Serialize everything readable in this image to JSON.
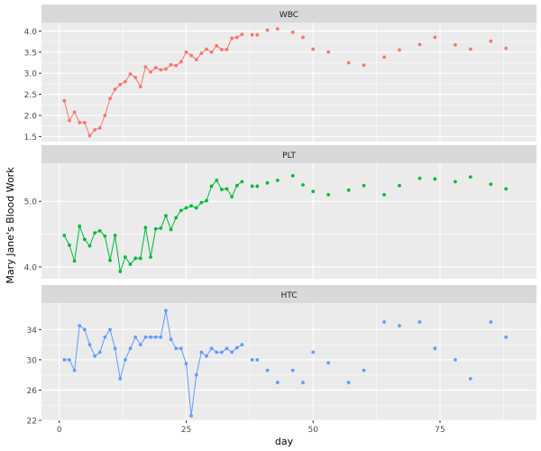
{
  "chart_data": {
    "type": "line",
    "xlabel": "day",
    "ylabel": "Mary  Jane's Blood Work",
    "xlim": [
      -3.5,
      94
    ],
    "x_ticks": [
      0,
      25,
      50,
      75
    ],
    "grid": true,
    "panels": [
      {
        "name": "WBC",
        "color": "#F8766D",
        "ylim": [
          1.38,
          4.2
        ],
        "y_ticks": [
          1.5,
          2.0,
          2.5,
          3.0,
          3.5,
          4.0
        ],
        "y_tick_labels": [
          "1.5",
          "2.0",
          "2.5",
          "3.0",
          "3.5",
          "4.0"
        ],
        "line_until": 36,
        "points": [
          [
            1,
            2.35
          ],
          [
            2,
            1.88
          ],
          [
            3,
            2.08
          ],
          [
            4,
            1.83
          ],
          [
            5,
            1.83
          ],
          [
            6,
            1.52
          ],
          [
            7,
            1.66
          ],
          [
            8,
            1.7
          ],
          [
            9,
            2.0
          ],
          [
            10,
            2.4
          ],
          [
            11,
            2.62
          ],
          [
            12,
            2.73
          ],
          [
            13,
            2.8
          ],
          [
            14,
            2.98
          ],
          [
            15,
            2.9
          ],
          [
            16,
            2.68
          ],
          [
            17,
            3.15
          ],
          [
            18,
            3.03
          ],
          [
            19,
            3.13
          ],
          [
            20,
            3.08
          ],
          [
            21,
            3.1
          ],
          [
            22,
            3.2
          ],
          [
            23,
            3.18
          ],
          [
            24,
            3.27
          ],
          [
            25,
            3.5
          ],
          [
            26,
            3.42
          ],
          [
            27,
            3.32
          ],
          [
            28,
            3.47
          ],
          [
            29,
            3.57
          ],
          [
            30,
            3.5
          ],
          [
            31,
            3.65
          ],
          [
            32,
            3.56
          ],
          [
            33,
            3.56
          ],
          [
            34,
            3.83
          ],
          [
            35,
            3.85
          ],
          [
            36,
            3.92
          ],
          [
            38,
            3.91
          ],
          [
            39,
            3.91
          ],
          [
            41,
            4.02
          ],
          [
            43,
            4.05
          ],
          [
            46,
            3.97
          ],
          [
            48,
            3.85
          ],
          [
            50,
            3.57
          ],
          [
            53,
            3.5
          ],
          [
            57,
            3.25
          ],
          [
            60,
            3.19
          ],
          [
            64,
            3.38
          ],
          [
            67,
            3.55
          ],
          [
            71,
            3.68
          ],
          [
            74,
            3.85
          ],
          [
            78,
            3.67
          ],
          [
            81,
            3.57
          ],
          [
            85,
            3.76
          ],
          [
            88,
            3.59
          ]
        ]
      },
      {
        "name": "PLT",
        "color": "#00BA38",
        "ylim": [
          3.82,
          5.58
        ],
        "y_ticks": [
          4.0,
          5.0
        ],
        "y_tick_labels": [
          "4.0",
          "5.0"
        ],
        "line_until": 36,
        "points": [
          [
            1,
            4.48
          ],
          [
            2,
            4.33
          ],
          [
            3,
            4.09
          ],
          [
            4,
            4.62
          ],
          [
            5,
            4.42
          ],
          [
            6,
            4.32
          ],
          [
            7,
            4.52
          ],
          [
            8,
            4.55
          ],
          [
            9,
            4.47
          ],
          [
            10,
            4.1
          ],
          [
            11,
            4.48
          ],
          [
            12,
            3.93
          ],
          [
            13,
            4.15
          ],
          [
            14,
            4.04
          ],
          [
            15,
            4.13
          ],
          [
            16,
            4.13
          ],
          [
            17,
            4.6
          ],
          [
            18,
            4.15
          ],
          [
            19,
            4.58
          ],
          [
            20,
            4.59
          ],
          [
            21,
            4.78
          ],
          [
            22,
            4.57
          ],
          [
            23,
            4.75
          ],
          [
            24,
            4.86
          ],
          [
            25,
            4.9
          ],
          [
            26,
            4.93
          ],
          [
            27,
            4.9
          ],
          [
            28,
            4.98
          ],
          [
            29,
            5.01
          ],
          [
            30,
            5.23
          ],
          [
            31,
            5.32
          ],
          [
            32,
            5.18
          ],
          [
            33,
            5.19
          ],
          [
            34,
            5.07
          ],
          [
            35,
            5.24
          ],
          [
            36,
            5.3
          ],
          [
            38,
            5.23
          ],
          [
            39,
            5.23
          ],
          [
            41,
            5.28
          ],
          [
            43,
            5.32
          ],
          [
            46,
            5.39
          ],
          [
            48,
            5.25
          ],
          [
            50,
            5.15
          ],
          [
            53,
            5.1
          ],
          [
            57,
            5.17
          ],
          [
            60,
            5.24
          ],
          [
            64,
            5.1
          ],
          [
            67,
            5.24
          ],
          [
            71,
            5.35
          ],
          [
            74,
            5.34
          ],
          [
            78,
            5.3
          ],
          [
            81,
            5.37
          ],
          [
            85,
            5.26
          ],
          [
            88,
            5.19
          ]
        ]
      },
      {
        "name": "HTC",
        "color": "#619CFF",
        "ylim": [
          22,
          37.5
        ],
        "y_ticks": [
          22,
          26,
          30,
          34
        ],
        "y_tick_labels": [
          "22",
          "26",
          "30",
          "34"
        ],
        "line_until": 36,
        "points": [
          [
            1,
            30.0
          ],
          [
            2,
            30.0
          ],
          [
            3,
            28.6
          ],
          [
            4,
            34.5
          ],
          [
            5,
            34.0
          ],
          [
            6,
            32.0
          ],
          [
            7,
            30.5
          ],
          [
            8,
            31.0
          ],
          [
            9,
            33.0
          ],
          [
            10,
            34.0
          ],
          [
            11,
            31.5
          ],
          [
            12,
            27.5
          ],
          [
            13,
            30.0
          ],
          [
            14,
            31.5
          ],
          [
            15,
            33.0
          ],
          [
            16,
            32.0
          ],
          [
            17,
            33.0
          ],
          [
            18,
            33.0
          ],
          [
            19,
            33.0
          ],
          [
            20,
            33.0
          ],
          [
            21,
            36.5
          ],
          [
            22,
            32.7
          ],
          [
            23,
            31.5
          ],
          [
            24,
            31.5
          ],
          [
            25,
            29.5
          ],
          [
            26,
            22.6
          ],
          [
            27,
            28.0
          ],
          [
            28,
            31.0
          ],
          [
            29,
            30.5
          ],
          [
            30,
            31.5
          ],
          [
            31,
            31.0
          ],
          [
            32,
            31.0
          ],
          [
            33,
            31.5
          ],
          [
            34,
            31.0
          ],
          [
            35,
            31.6
          ],
          [
            36,
            32.0
          ],
          [
            38,
            30.0
          ],
          [
            39,
            30.0
          ],
          [
            41,
            28.6
          ],
          [
            43,
            27.0
          ],
          [
            46,
            28.6
          ],
          [
            48,
            27.0
          ],
          [
            50,
            31.0
          ],
          [
            53,
            29.6
          ],
          [
            57,
            27.0
          ],
          [
            60,
            28.6
          ],
          [
            64,
            35.0
          ],
          [
            67,
            34.5
          ],
          [
            71,
            35.0
          ],
          [
            74,
            31.5
          ],
          [
            78,
            30.0
          ],
          [
            81,
            27.5
          ],
          [
            85,
            35.0
          ],
          [
            88,
            33.0
          ]
        ]
      }
    ]
  }
}
